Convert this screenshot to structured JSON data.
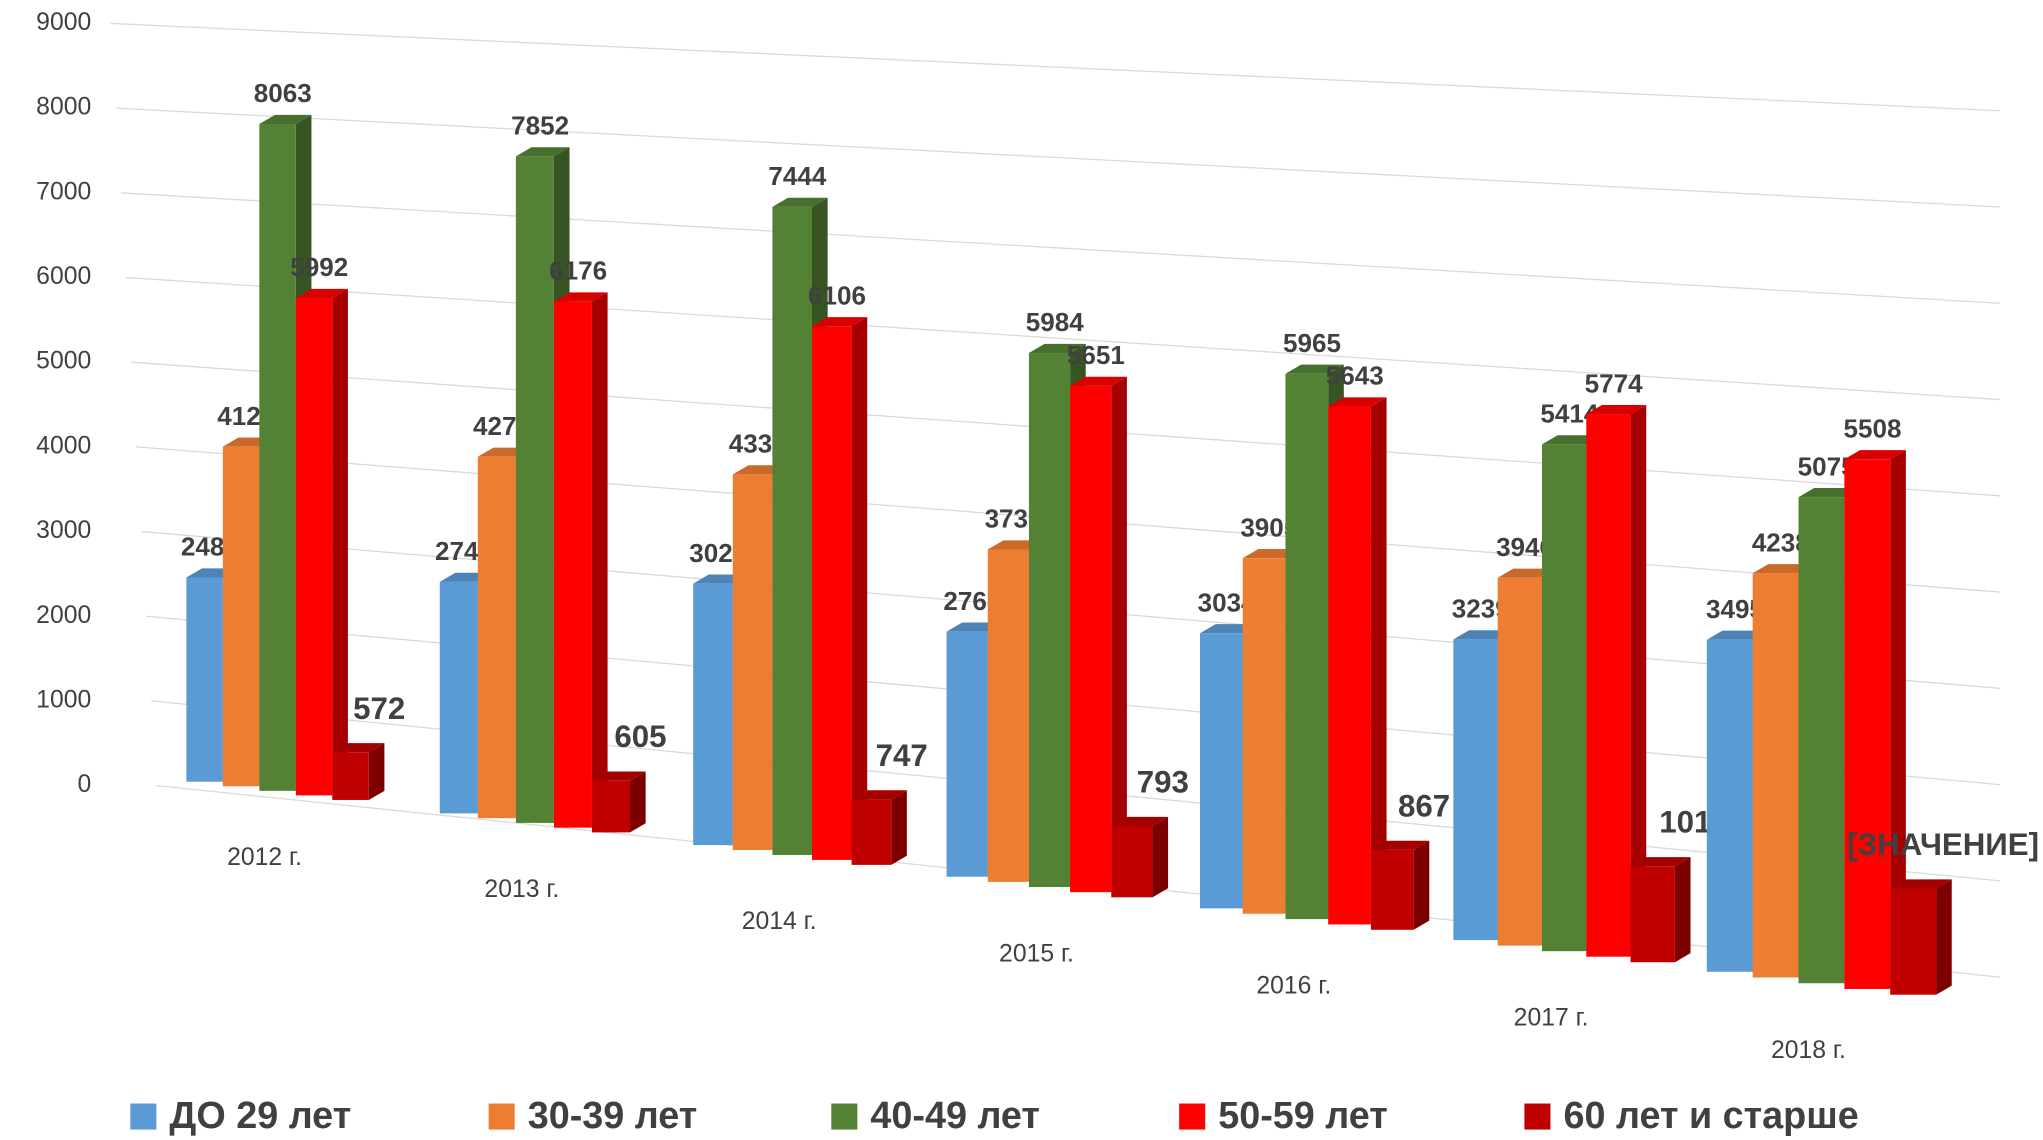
{
  "chart_data": {
    "type": "bar3d",
    "categories": [
      "2012 г.",
      "2013 г.",
      "2014 г.",
      "2015 г.",
      "2016 г.",
      "2017 г.",
      "2018 г."
    ],
    "series": [
      {
        "name": "ДО 29 лет",
        "color": "#5b9bd5",
        "values": [
          2488,
          2748,
          3026,
          2768,
          3034,
          3239,
          3495
        ]
      },
      {
        "name": "30-39 лет",
        "color": "#ed7d31",
        "values": [
          4122,
          4274,
          4331,
          3739,
          3905,
          3946,
          4238
        ]
      },
      {
        "name": "40-49 лет",
        "color": "#548235",
        "values": [
          8063,
          7852,
          7444,
          5984,
          5965,
          5414,
          5075
        ]
      },
      {
        "name": "50-59 лет",
        "color": "#ff0000",
        "values": [
          5992,
          6176,
          6106,
          5651,
          5643,
          5774,
          5508
        ]
      },
      {
        "name": "60 лет и старше",
        "color": "#c00000",
        "values": [
          572,
          605,
          747,
          793,
          867,
          1018,
          1100
        ],
        "value_labels": [
          "572",
          "605",
          "747",
          "793",
          "867",
          "1018",
          "[ЗНАЧЕНИЕ]"
        ]
      }
    ],
    "ylim": [
      0,
      9000
    ],
    "yticks": [
      0,
      1000,
      2000,
      3000,
      4000,
      5000,
      6000,
      7000,
      8000,
      9000
    ],
    "grid": true,
    "legend": "bottom"
  }
}
